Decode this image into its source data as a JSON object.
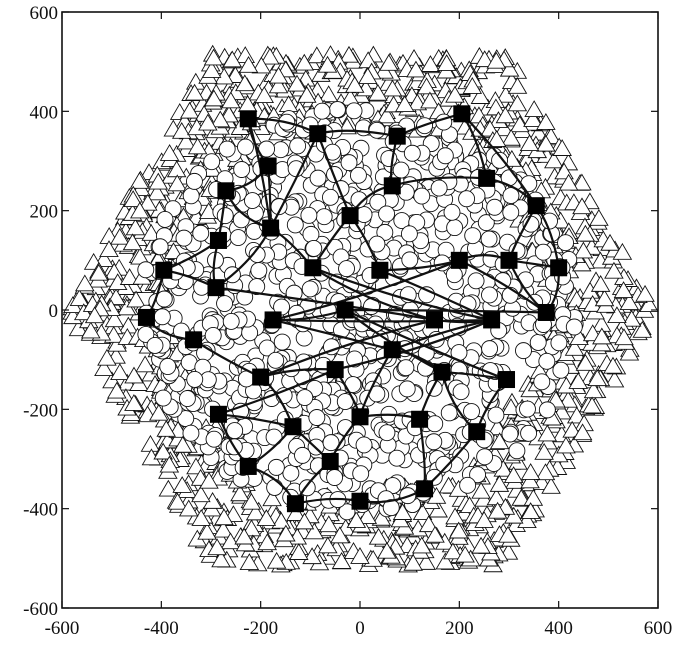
{
  "chart_data": {
    "type": "scatter",
    "title": "",
    "xlabel": "",
    "ylabel": "",
    "xlim": [
      -600,
      600
    ],
    "ylim": [
      -600,
      600
    ],
    "xticks": [
      "-600",
      "-400",
      "-200",
      "0",
      "200",
      "400",
      "600"
    ],
    "yticks": [
      "600",
      "400",
      "200",
      "0",
      "-200",
      "-400",
      "-600"
    ],
    "grid": false,
    "legend": "none",
    "series": [
      {
        "marker": "filled-square",
        "role": "cluster heads",
        "points": [
          [
            -225,
            385
          ],
          [
            -85,
            355
          ],
          [
            75,
            350
          ],
          [
            205,
            395
          ],
          [
            -185,
            290
          ],
          [
            -270,
            240
          ],
          [
            65,
            250
          ],
          [
            255,
            265
          ],
          [
            355,
            210
          ],
          [
            -285,
            140
          ],
          [
            -180,
            165
          ],
          [
            -20,
            190
          ],
          [
            -395,
            80
          ],
          [
            -95,
            85
          ],
          [
            40,
            80
          ],
          [
            200,
            100
          ],
          [
            300,
            100
          ],
          [
            400,
            85
          ],
          [
            -290,
            45
          ],
          [
            -430,
            -15
          ],
          [
            -175,
            -20
          ],
          [
            -30,
            0
          ],
          [
            150,
            -20
          ],
          [
            265,
            -20
          ],
          [
            375,
            -5
          ],
          [
            -335,
            -60
          ],
          [
            65,
            -80
          ],
          [
            -200,
            -135
          ],
          [
            -50,
            -120
          ],
          [
            165,
            -125
          ],
          [
            295,
            -140
          ],
          [
            -285,
            -210
          ],
          [
            0,
            -215
          ],
          [
            120,
            -220
          ],
          [
            235,
            -245
          ],
          [
            -135,
            -235
          ],
          [
            -225,
            -315
          ],
          [
            -60,
            -305
          ],
          [
            -130,
            -390
          ],
          [
            0,
            -385
          ],
          [
            130,
            -360
          ]
        ]
      },
      {
        "marker": "open-circle",
        "role": "inner nodes"
      },
      {
        "marker": "open-triangle",
        "role": "outer nodes"
      }
    ],
    "links": [
      [
        0,
        1
      ],
      [
        1,
        2
      ],
      [
        2,
        3
      ],
      [
        0,
        4
      ],
      [
        4,
        5
      ],
      [
        4,
        10
      ],
      [
        1,
        10
      ],
      [
        1,
        11
      ],
      [
        2,
        6
      ],
      [
        3,
        7
      ],
      [
        6,
        7
      ],
      [
        7,
        8
      ],
      [
        6,
        11
      ],
      [
        11,
        13
      ],
      [
        11,
        14
      ],
      [
        10,
        13
      ],
      [
        5,
        9
      ],
      [
        9,
        12
      ],
      [
        9,
        18
      ],
      [
        10,
        18
      ],
      [
        12,
        18
      ],
      [
        12,
        19
      ],
      [
        19,
        25
      ],
      [
        18,
        22
      ],
      [
        13,
        22
      ],
      [
        13,
        23
      ],
      [
        14,
        23
      ],
      [
        14,
        15
      ],
      [
        15,
        16
      ],
      [
        16,
        17
      ],
      [
        8,
        16
      ],
      [
        8,
        17
      ],
      [
        17,
        24
      ],
      [
        16,
        24
      ],
      [
        15,
        24
      ],
      [
        15,
        20
      ],
      [
        23,
        20
      ],
      [
        20,
        21
      ],
      [
        21,
        24
      ],
      [
        22,
        23
      ],
      [
        22,
        27
      ],
      [
        25,
        27
      ],
      [
        23,
        28
      ],
      [
        23,
        26
      ],
      [
        26,
        29
      ],
      [
        20,
        26
      ],
      [
        21,
        30
      ],
      [
        29,
        30
      ],
      [
        27,
        28
      ],
      [
        28,
        32
      ],
      [
        28,
        31
      ],
      [
        26,
        32
      ],
      [
        29,
        33
      ],
      [
        30,
        34
      ],
      [
        32,
        33
      ],
      [
        27,
        35
      ],
      [
        31,
        35
      ],
      [
        35,
        36
      ],
      [
        31,
        36
      ],
      [
        35,
        37
      ],
      [
        32,
        37
      ],
      [
        37,
        38
      ],
      [
        36,
        38
      ],
      [
        38,
        39
      ],
      [
        39,
        40
      ],
      [
        33,
        40
      ],
      [
        34,
        40
      ],
      [
        29,
        34
      ],
      [
        0,
        10
      ],
      [
        3,
        8
      ],
      [
        5,
        10
      ],
      [
        21,
        29
      ]
    ]
  }
}
